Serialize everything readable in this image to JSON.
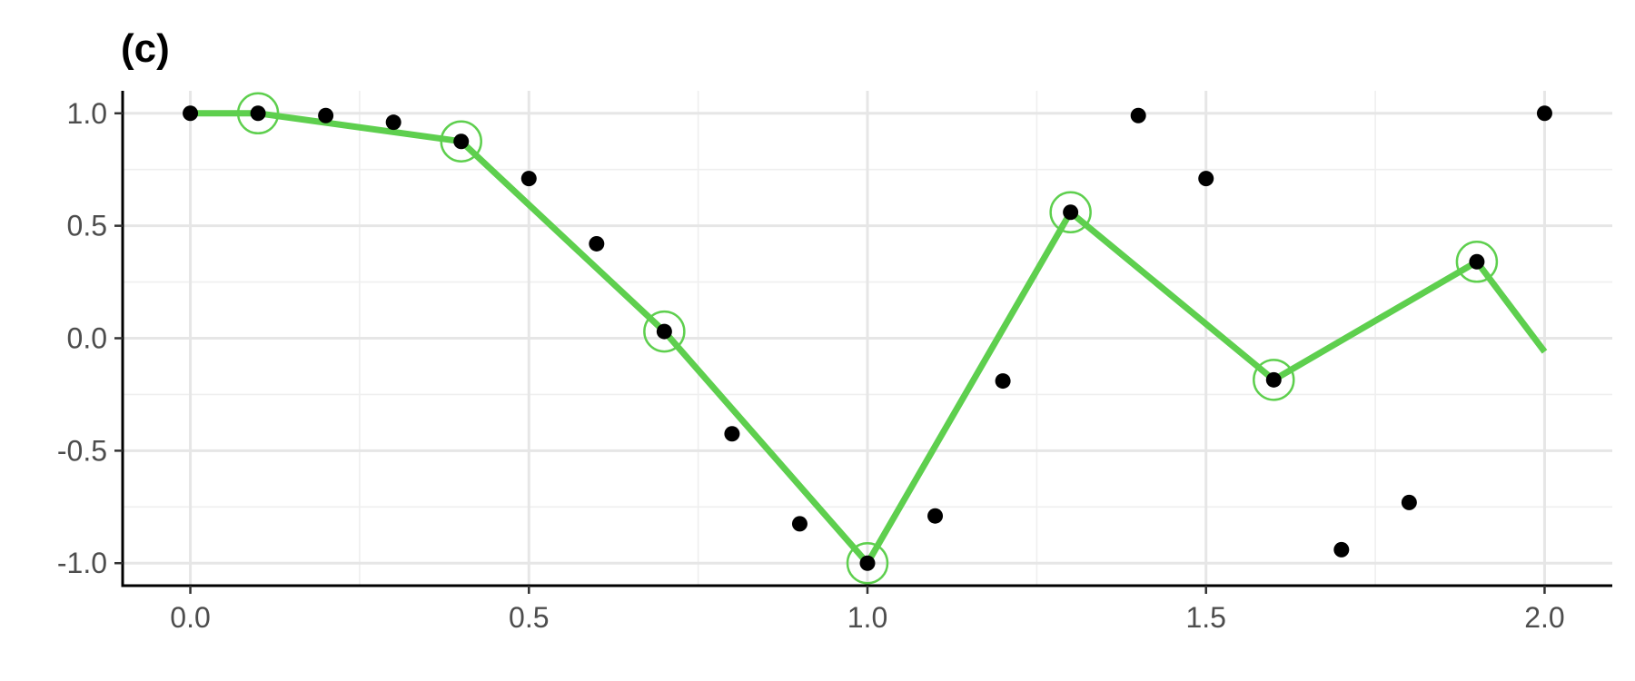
{
  "chart_data": {
    "type": "scatter",
    "title": "(c)",
    "xlabel": "",
    "ylabel": "",
    "xlim": [
      -0.1,
      2.1
    ],
    "ylim": [
      -1.1,
      1.1
    ],
    "x_ticks": [
      0.0,
      0.5,
      1.0,
      1.5,
      2.0
    ],
    "x_tick_labels": [
      "0.0",
      "0.5",
      "1.0",
      "1.5",
      "2.0"
    ],
    "y_ticks": [
      -1.0,
      -0.5,
      0.0,
      0.5,
      1.0
    ],
    "y_tick_labels": [
      "-1.0",
      "-0.5",
      "0.0",
      "0.5",
      "1.0"
    ],
    "grid": true,
    "legend": "none",
    "series": [
      {
        "type": "scatter",
        "color": "#000000",
        "points": [
          [
            0.0,
            1.0
          ],
          [
            0.1,
            1.0
          ],
          [
            0.2,
            0.99
          ],
          [
            0.3,
            0.96
          ],
          [
            0.4,
            0.875
          ],
          [
            0.5,
            0.71
          ],
          [
            0.6,
            0.42
          ],
          [
            0.7,
            0.03
          ],
          [
            0.8,
            -0.425
          ],
          [
            0.9,
            -0.825
          ],
          [
            1.0,
            -1.0
          ],
          [
            1.1,
            -0.79
          ],
          [
            1.2,
            -0.19
          ],
          [
            1.3,
            0.56
          ],
          [
            1.4,
            0.99
          ],
          [
            1.5,
            0.71
          ],
          [
            1.6,
            -0.185
          ],
          [
            1.7,
            -0.94
          ],
          [
            1.8,
            -0.73
          ],
          [
            1.9,
            0.34
          ],
          [
            2.0,
            1.0
          ]
        ]
      },
      {
        "type": "line",
        "color": "#5ecf4e",
        "points": [
          [
            0.0,
            1.0
          ],
          [
            0.1,
            1.0
          ],
          [
            0.4,
            0.875
          ],
          [
            0.7,
            0.03
          ],
          [
            1.0,
            -1.0
          ],
          [
            1.3,
            0.56
          ],
          [
            1.6,
            -0.185
          ],
          [
            1.9,
            0.34
          ],
          [
            2.0,
            -0.06
          ]
        ]
      },
      {
        "type": "circled-points",
        "color": "#5ecf4e",
        "points": [
          [
            0.1,
            1.0
          ],
          [
            0.4,
            0.875
          ],
          [
            0.7,
            0.03
          ],
          [
            1.0,
            -1.0
          ],
          [
            1.3,
            0.56
          ],
          [
            1.6,
            -0.185
          ],
          [
            1.9,
            0.34
          ]
        ]
      }
    ]
  }
}
